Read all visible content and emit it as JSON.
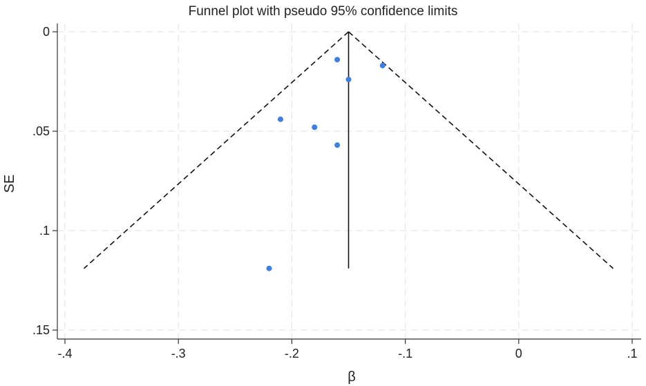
{
  "chart_data": {
    "type": "scatter",
    "title": "Funnel plot with pseudo 95% confidence limits",
    "xlabel": "β",
    "ylabel": "SE",
    "xlim": [
      -0.4,
      0.1
    ],
    "ylim": [
      0,
      0.15
    ],
    "y_reversed": true,
    "grid": true,
    "x_ticks": [
      -0.4,
      -0.3,
      -0.2,
      -0.1,
      0,
      0.1
    ],
    "x_tick_labels": [
      "-.4",
      "-.3",
      "-.2",
      "-.1",
      "0",
      ".1"
    ],
    "y_ticks": [
      0,
      0.05,
      0.1,
      0.15
    ],
    "y_tick_labels": [
      "0",
      ".05",
      ".1",
      ".15"
    ],
    "pooled_estimate": -0.15,
    "funnel_max_se": 0.119,
    "confidence_multiplier": 1.96,
    "points": [
      {
        "x": -0.16,
        "y": 0.014
      },
      {
        "x": -0.12,
        "y": 0.017
      },
      {
        "x": -0.15,
        "y": 0.024
      },
      {
        "x": -0.21,
        "y": 0.044
      },
      {
        "x": -0.18,
        "y": 0.048
      },
      {
        "x": -0.16,
        "y": 0.057
      },
      {
        "x": -0.22,
        "y": 0.119
      }
    ],
    "colors": {
      "points": "#3f7fe0",
      "lines": "#111111",
      "grid": "#e6e6e6",
      "axis": "#333333"
    }
  }
}
